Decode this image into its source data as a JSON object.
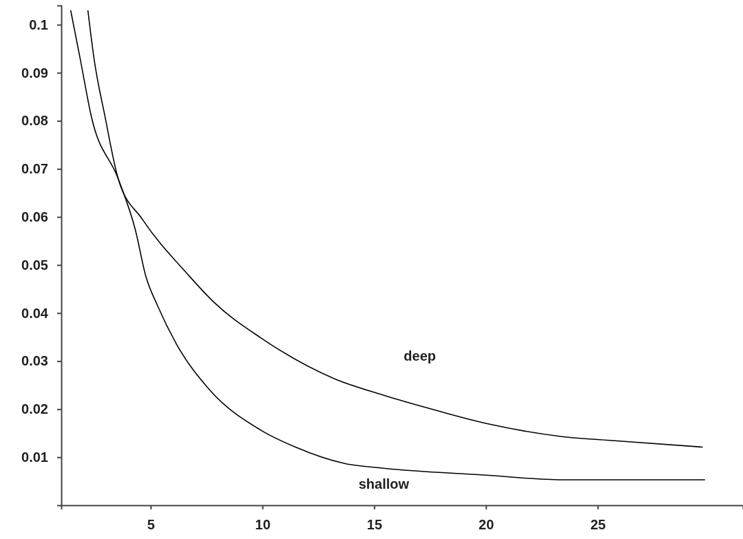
{
  "chart_data": {
    "type": "line",
    "xlim": [
      1,
      31.5
    ],
    "ylim": [
      0,
      0.104
    ],
    "xticks": [
      5,
      10,
      15,
      20,
      25
    ],
    "yticks": [
      0.01,
      0.02,
      0.03,
      0.04,
      0.05,
      0.06,
      0.07,
      0.08,
      0.09,
      0.1
    ],
    "grid": false,
    "marker": "none",
    "line_style": "solid",
    "series": [
      {
        "name": "deep",
        "color": "#000000",
        "x": [
          2.19,
          2.47,
          2.96,
          3.55,
          4.63,
          6.67,
          7.84,
          9.94,
          13.24,
          15.43,
          17.04,
          20.03,
          23.4,
          25.56,
          29.7
        ],
        "values": [
          0.103,
          0.0928,
          0.0808,
          0.0679,
          0.0595,
          0.048,
          0.0422,
          0.0348,
          0.0263,
          0.0229,
          0.0207,
          0.017,
          0.0143,
          0.0135,
          0.0121
        ]
      },
      {
        "name": "shallow",
        "color": "#000000",
        "x": [
          1.42,
          1.85,
          2.35,
          3.55,
          4.32,
          4.78,
          5.31,
          6.17,
          7.62,
          9.94,
          11.48,
          13.67,
          15.43,
          19.9,
          23.4,
          29.8
        ],
        "values": [
          0.103,
          0.0928,
          0.0808,
          0.0679,
          0.0572,
          0.0477,
          0.0415,
          0.0334,
          0.0241,
          0.0156,
          0.0121,
          0.0087,
          0.0077,
          0.0063,
          0.0053,
          0.0053
        ]
      }
    ]
  }
}
